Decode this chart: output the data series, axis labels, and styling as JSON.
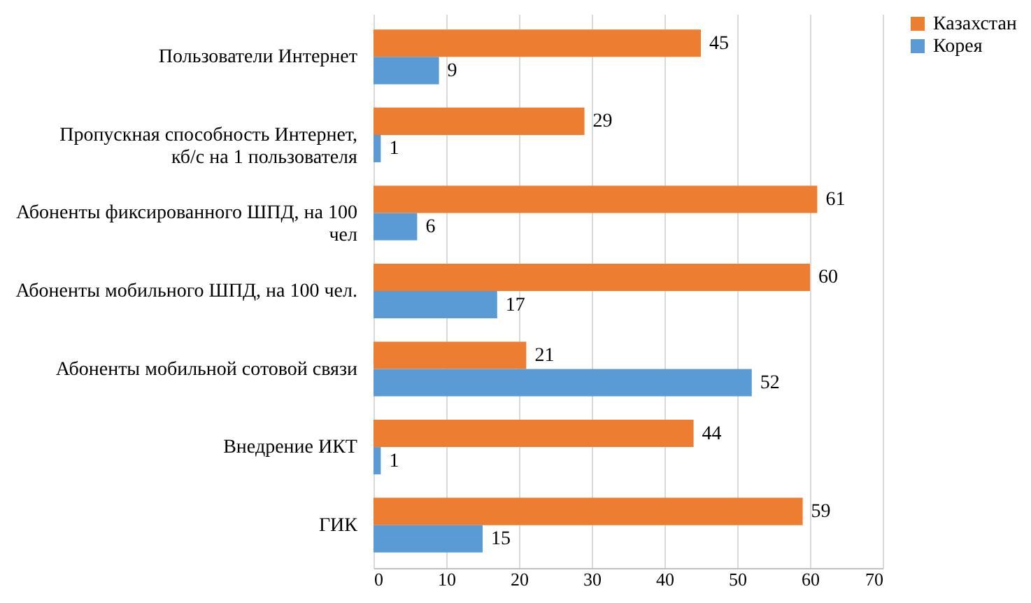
{
  "chart_data": {
    "type": "bar",
    "orientation": "horizontal",
    "categories": [
      "Пользователи Интернет",
      "Пропускная способность Интернет, кб/с на 1 пользователя",
      "Абоненты фиксированного ШПД, на 100 чел",
      "Абоненты мобильного ШПД, на 100 чел.",
      "Абоненты мобильной сотовой связи",
      "Внедрение ИКТ",
      "ГИК"
    ],
    "series": [
      {
        "name": "Казахстан",
        "color": "#ed7d31",
        "values": [
          45,
          29,
          61,
          60,
          21,
          44,
          59
        ]
      },
      {
        "name": "Корея",
        "color": "#5b9bd5",
        "values": [
          9,
          1,
          6,
          17,
          52,
          1,
          15
        ]
      }
    ],
    "xlim": [
      0,
      70
    ],
    "xticks": [
      0,
      10,
      20,
      30,
      40,
      50,
      60,
      70
    ],
    "grid": "x",
    "legend": "right",
    "data_labels": true
  }
}
